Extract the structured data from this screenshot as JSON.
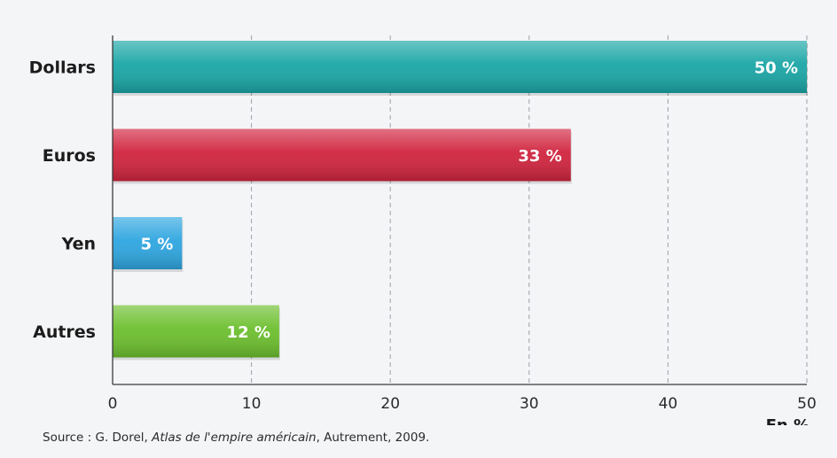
{
  "chart_data": {
    "type": "bar",
    "orientation": "horizontal",
    "categories": [
      "Dollars",
      "Euros",
      "Yen",
      "Autres"
    ],
    "values": [
      50,
      33,
      5,
      12
    ],
    "data_labels": [
      "50 %",
      "33 %",
      "5 %",
      "12 %"
    ],
    "colors": [
      "#1aa6a6",
      "#d0243e",
      "#2ea6e0",
      "#6cbf2e"
    ],
    "xlabel": "En %",
    "xlim": [
      0,
      50
    ],
    "x_ticks": [
      0,
      10,
      20,
      30,
      40,
      50
    ],
    "grid": "vertical-dashed"
  },
  "source": {
    "prefix": "Source : G. Dorel, ",
    "title": "Atlas de l'empire américain",
    "suffix": ", Autrement, 2009."
  }
}
